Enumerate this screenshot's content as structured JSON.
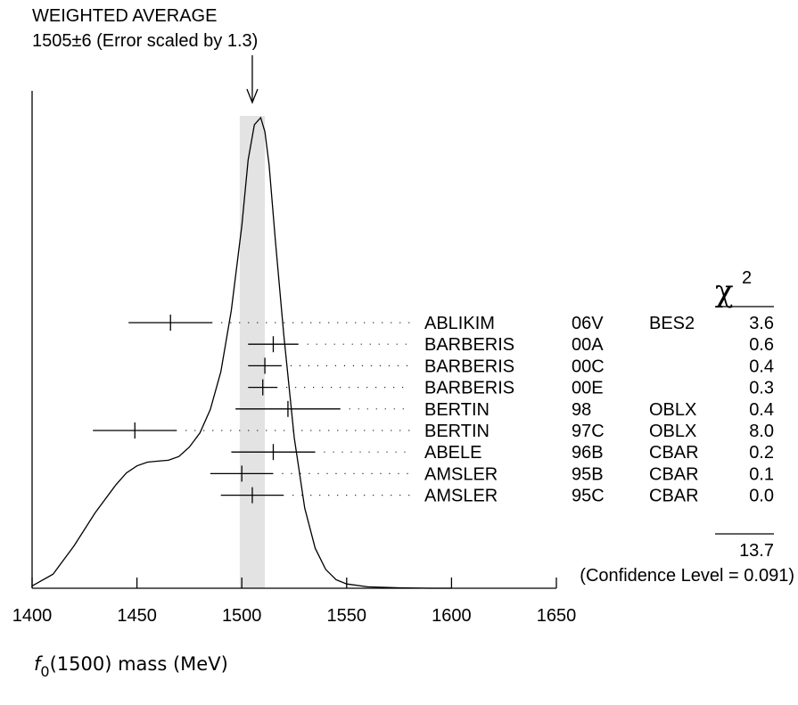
{
  "chart_data": {
    "type": "scatter",
    "title": "WEIGHTED AVERAGE",
    "subtitle": "1505±6 (Error scaled by 1.3)",
    "weighted_average": {
      "value": 1505,
      "error": 6
    },
    "xlabel_symbol": "f",
    "xlabel_subscript": "0",
    "xlabel_rest": "(1500) mass (MeV)",
    "xlim": [
      1400,
      1650
    ],
    "x_ticks": [
      1400,
      1450,
      1500,
      1550,
      1600,
      1650
    ],
    "x_tick_labels": [
      "1400",
      "1450",
      "1500",
      "1550",
      "1600",
      "1650"
    ],
    "chi2_header_symbol": "χ",
    "chi2_header_sup": "2",
    "measurements": [
      {
        "author": "ABLIKIM",
        "code": "06V",
        "tech": "BES2",
        "chi2": "3.6",
        "value": 1466,
        "error": 20
      },
      {
        "author": "BARBERIS",
        "code": "00A",
        "tech": "",
        "chi2": "0.6",
        "value": 1515,
        "error": 12
      },
      {
        "author": "BARBERIS",
        "code": "00C",
        "tech": "",
        "chi2": "0.4",
        "value": 1511,
        "error": 8
      },
      {
        "author": "BARBERIS",
        "code": "00E",
        "tech": "",
        "chi2": "0.3",
        "value": 1510,
        "error": 7
      },
      {
        "author": "BERTIN",
        "code": "98",
        "tech": "OBLX",
        "chi2": "0.4",
        "value": 1522,
        "error": 25
      },
      {
        "author": "BERTIN",
        "code": "97C",
        "tech": "OBLX",
        "chi2": "8.0",
        "value": 1449,
        "error": 20
      },
      {
        "author": "ABELE",
        "code": "96B",
        "tech": "CBAR",
        "chi2": "0.2",
        "value": 1515,
        "error": 20
      },
      {
        "author": "AMSLER",
        "code": "95B",
        "tech": "CBAR",
        "chi2": "0.1",
        "value": 1500,
        "error": 15
      },
      {
        "author": "AMSLER",
        "code": "95C",
        "tech": "CBAR",
        "chi2": "0.0",
        "value": 1505,
        "error": 15
      }
    ],
    "chi2_total": "13.7",
    "confidence_level_text": "(Confidence Level = 0.091)",
    "band_color": "#e3e3e3",
    "ideogram": {
      "x": [
        1400,
        1410,
        1420,
        1430,
        1440,
        1445,
        1450,
        1455,
        1460,
        1465,
        1470,
        1475,
        1480,
        1485,
        1490,
        1495,
        1500,
        1503,
        1506,
        1509,
        1511,
        1513,
        1516,
        1520,
        1525,
        1530,
        1535,
        1540,
        1545,
        1550,
        1560,
        1575,
        1590,
        1600
      ],
      "y": [
        0.005,
        0.03,
        0.09,
        0.16,
        0.22,
        0.245,
        0.26,
        0.268,
        0.27,
        0.272,
        0.28,
        0.3,
        0.33,
        0.38,
        0.46,
        0.59,
        0.77,
        0.91,
        0.985,
        1.0,
        0.97,
        0.9,
        0.74,
        0.54,
        0.32,
        0.17,
        0.085,
        0.04,
        0.018,
        0.009,
        0.003,
        0.001,
        0.0,
        0.0
      ]
    }
  }
}
